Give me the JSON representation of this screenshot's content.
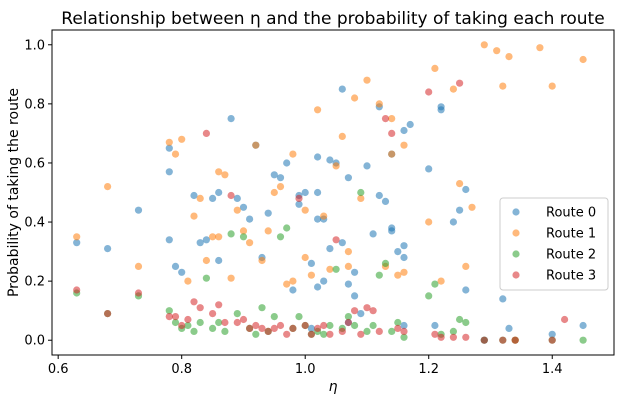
{
  "chart_data": {
    "type": "scatter",
    "title": "Relationship between η and the probability of taking each route",
    "xlabel": "η",
    "ylabel": "Probability of taking the route",
    "xlim": [
      0.59,
      1.5
    ],
    "ylim": [
      -0.05,
      1.05
    ],
    "xticks": [
      0.6,
      0.8,
      1.0,
      1.2,
      1.4
    ],
    "xtick_labels": [
      "0.6",
      "0.8",
      "1.0",
      "1.2",
      "1.4"
    ],
    "yticks": [
      0.0,
      0.2,
      0.4,
      0.6,
      0.8,
      1.0
    ],
    "ytick_labels": [
      "0.0",
      "0.2",
      "0.4",
      "0.6",
      "0.8",
      "1.0"
    ],
    "grid": false,
    "legend_position": "center-right",
    "series": [
      {
        "name": "Route 0",
        "color": "#1f77b4",
        "points": [
          [
            0.63,
            0.33
          ],
          [
            0.68,
            0.31
          ],
          [
            0.73,
            0.44
          ],
          [
            0.78,
            0.65
          ],
          [
            0.78,
            0.57
          ],
          [
            0.78,
            0.34
          ],
          [
            0.79,
            0.25
          ],
          [
            0.8,
            0.23
          ],
          [
            0.82,
            0.49
          ],
          [
            0.83,
            0.33
          ],
          [
            0.84,
            0.34
          ],
          [
            0.85,
            0.48
          ],
          [
            0.86,
            0.5
          ],
          [
            0.86,
            0.27
          ],
          [
            0.88,
            0.75
          ],
          [
            0.89,
            0.48
          ],
          [
            0.9,
            0.45
          ],
          [
            0.91,
            0.41
          ],
          [
            0.92,
            0.66
          ],
          [
            0.93,
            0.28
          ],
          [
            0.94,
            0.43
          ],
          [
            0.95,
            0.56
          ],
          [
            0.96,
            0.55
          ],
          [
            0.97,
            0.6
          ],
          [
            0.98,
            0.17
          ],
          [
            0.99,
            0.46
          ],
          [
            0.99,
            0.49
          ],
          [
            1.0,
            0.5
          ],
          [
            1.01,
            0.26
          ],
          [
            1.01,
            0.04
          ],
          [
            1.02,
            0.62
          ],
          [
            1.02,
            0.5
          ],
          [
            1.02,
            0.41
          ],
          [
            1.02,
            0.18
          ],
          [
            1.03,
            0.41
          ],
          [
            1.03,
            0.2
          ],
          [
            1.04,
            0.61
          ],
          [
            1.04,
            0.31
          ],
          [
            1.05,
            0.6
          ],
          [
            1.06,
            0.85
          ],
          [
            1.06,
            0.33
          ],
          [
            1.07,
            0.55
          ],
          [
            1.07,
            0.19
          ],
          [
            1.07,
            0.06
          ],
          [
            1.08,
            0.23
          ],
          [
            1.08,
            0.15
          ],
          [
            1.09,
            0.09
          ],
          [
            1.1,
            0.59
          ],
          [
            1.11,
            0.36
          ],
          [
            1.12,
            0.79
          ],
          [
            1.12,
            0.49
          ],
          [
            1.13,
            0.47
          ],
          [
            1.14,
            0.63
          ],
          [
            1.14,
            0.38
          ],
          [
            1.14,
            0.37
          ],
          [
            1.15,
            0.3
          ],
          [
            1.16,
            0.71
          ],
          [
            1.16,
            0.28
          ],
          [
            1.16,
            0.32
          ],
          [
            1.16,
            0.05
          ],
          [
            1.17,
            0.73
          ],
          [
            1.2,
            0.58
          ],
          [
            1.21,
            0.05
          ],
          [
            1.22,
            0.79
          ],
          [
            1.22,
            0.78
          ],
          [
            1.24,
            0.4
          ],
          [
            1.25,
            0.44
          ],
          [
            1.26,
            0.17
          ],
          [
            1.26,
            0.51
          ],
          [
            1.29,
            0.0
          ],
          [
            1.32,
            0.14
          ],
          [
            1.33,
            0.04
          ],
          [
            1.4,
            0.02
          ],
          [
            1.45,
            0.05
          ]
        ]
      },
      {
        "name": "Route 1",
        "color": "#ff7f0e",
        "points": [
          [
            0.63,
            0.35
          ],
          [
            0.68,
            0.52
          ],
          [
            0.73,
            0.25
          ],
          [
            0.78,
            0.67
          ],
          [
            0.79,
            0.63
          ],
          [
            0.8,
            0.68
          ],
          [
            0.81,
            0.2
          ],
          [
            0.82,
            0.42
          ],
          [
            0.83,
            0.48
          ],
          [
            0.84,
            0.27
          ],
          [
            0.85,
            0.35
          ],
          [
            0.86,
            0.57
          ],
          [
            0.86,
            0.35
          ],
          [
            0.87,
            0.56
          ],
          [
            0.88,
            0.21
          ],
          [
            0.89,
            0.44
          ],
          [
            0.9,
            0.37
          ],
          [
            0.91,
            0.33
          ],
          [
            0.92,
            0.66
          ],
          [
            0.93,
            0.27
          ],
          [
            0.94,
            0.37
          ],
          [
            0.95,
            0.5
          ],
          [
            0.96,
            0.52
          ],
          [
            0.97,
            0.19
          ],
          [
            0.98,
            0.63
          ],
          [
            0.98,
            0.2
          ],
          [
            1.0,
            0.44
          ],
          [
            1.0,
            0.28
          ],
          [
            1.01,
            0.22
          ],
          [
            1.02,
            0.78
          ],
          [
            1.03,
            0.42
          ],
          [
            1.04,
            0.24
          ],
          [
            1.05,
            0.59
          ],
          [
            1.06,
            0.69
          ],
          [
            1.07,
            0.3
          ],
          [
            1.07,
            0.25
          ],
          [
            1.08,
            0.82
          ],
          [
            1.09,
            0.48
          ],
          [
            1.1,
            0.88
          ],
          [
            1.12,
            0.8
          ],
          [
            1.13,
            0.25
          ],
          [
            1.14,
            0.75
          ],
          [
            1.14,
            0.63
          ],
          [
            1.15,
            0.22
          ],
          [
            1.16,
            0.66
          ],
          [
            1.16,
            0.23
          ],
          [
            1.2,
            0.4
          ],
          [
            1.21,
            0.92
          ],
          [
            1.22,
            0.2
          ],
          [
            1.24,
            0.85
          ],
          [
            1.25,
            0.53
          ],
          [
            1.26,
            0.25
          ],
          [
            1.27,
            0.45
          ],
          [
            1.29,
            1.0
          ],
          [
            1.31,
            0.98
          ],
          [
            1.32,
            0.86
          ],
          [
            1.33,
            0.96
          ],
          [
            1.34,
            0.0
          ],
          [
            1.38,
            0.99
          ],
          [
            1.4,
            0.86
          ],
          [
            1.45,
            0.95
          ]
        ]
      },
      {
        "name": "Route 2",
        "color": "#2ca02c",
        "points": [
          [
            0.63,
            0.16
          ],
          [
            0.68,
            0.09
          ],
          [
            0.73,
            0.15
          ],
          [
            0.78,
            0.1
          ],
          [
            0.79,
            0.06
          ],
          [
            0.8,
            0.04
          ],
          [
            0.81,
            0.05
          ],
          [
            0.82,
            0.03
          ],
          [
            0.83,
            0.06
          ],
          [
            0.84,
            0.21
          ],
          [
            0.85,
            0.04
          ],
          [
            0.86,
            0.06
          ],
          [
            0.87,
            0.03
          ],
          [
            0.88,
            0.36
          ],
          [
            0.89,
            0.09
          ],
          [
            0.9,
            0.35
          ],
          [
            0.91,
            0.04
          ],
          [
            0.92,
            0.02
          ],
          [
            0.93,
            0.11
          ],
          [
            0.94,
            0.03
          ],
          [
            0.95,
            0.08
          ],
          [
            0.96,
            0.35
          ],
          [
            0.97,
            0.38
          ],
          [
            0.98,
            0.04
          ],
          [
            0.99,
            0.08
          ],
          [
            1.0,
            0.05
          ],
          [
            1.01,
            0.02
          ],
          [
            1.02,
            0.03
          ],
          [
            1.03,
            0.02
          ],
          [
            1.04,
            0.05
          ],
          [
            1.05,
            0.24
          ],
          [
            1.06,
            0.04
          ],
          [
            1.07,
            0.08
          ],
          [
            1.08,
            0.05
          ],
          [
            1.09,
            0.5
          ],
          [
            1.1,
            0.03
          ],
          [
            1.11,
            0.05
          ],
          [
            1.12,
            0.22
          ],
          [
            1.13,
            0.26
          ],
          [
            1.14,
            0.03
          ],
          [
            1.15,
            0.06
          ],
          [
            1.16,
            0.01
          ],
          [
            1.2,
            0.15
          ],
          [
            1.21,
            0.19
          ],
          [
            1.22,
            0.02
          ],
          [
            1.24,
            0.03
          ],
          [
            1.25,
            0.07
          ],
          [
            1.26,
            0.06
          ],
          [
            1.29,
            0.0
          ],
          [
            1.32,
            0.0
          ],
          [
            1.34,
            0.0
          ],
          [
            1.4,
            0.0
          ],
          [
            1.45,
            0.0
          ]
        ]
      },
      {
        "name": "Route 3",
        "color": "#d62728",
        "points": [
          [
            0.63,
            0.17
          ],
          [
            0.68,
            0.09
          ],
          [
            0.73,
            0.16
          ],
          [
            0.78,
            0.08
          ],
          [
            0.79,
            0.08
          ],
          [
            0.8,
            0.05
          ],
          [
            0.81,
            0.07
          ],
          [
            0.82,
            0.13
          ],
          [
            0.83,
            0.11
          ],
          [
            0.84,
            0.7
          ],
          [
            0.85,
            0.09
          ],
          [
            0.86,
            0.12
          ],
          [
            0.87,
            0.06
          ],
          [
            0.88,
            0.49
          ],
          [
            0.89,
            0.06
          ],
          [
            0.9,
            0.07
          ],
          [
            0.91,
            0.04
          ],
          [
            0.92,
            0.05
          ],
          [
            0.93,
            0.04
          ],
          [
            0.94,
            0.03
          ],
          [
            0.95,
            0.04
          ],
          [
            0.96,
            0.05
          ],
          [
            0.97,
            0.02
          ],
          [
            0.98,
            0.04
          ],
          [
            0.99,
            0.48
          ],
          [
            1.0,
            0.05
          ],
          [
            1.01,
            0.02
          ],
          [
            1.02,
            0.04
          ],
          [
            1.03,
            0.05
          ],
          [
            1.04,
            0.02
          ],
          [
            1.05,
            0.34
          ],
          [
            1.06,
            0.03
          ],
          [
            1.07,
            0.06
          ],
          [
            1.08,
            0.1
          ],
          [
            1.09,
            0.02
          ],
          [
            1.1,
            0.11
          ],
          [
            1.11,
            0.1
          ],
          [
            1.12,
            0.03
          ],
          [
            1.13,
            0.75
          ],
          [
            1.14,
            0.7
          ],
          [
            1.15,
            0.04
          ],
          [
            1.16,
            0.03
          ],
          [
            1.2,
            0.84
          ],
          [
            1.21,
            0.02
          ],
          [
            1.22,
            0.01
          ],
          [
            1.24,
            0.01
          ],
          [
            1.25,
            0.87
          ],
          [
            1.26,
            0.01
          ],
          [
            1.29,
            0.0
          ],
          [
            1.32,
            0.0
          ],
          [
            1.34,
            0.0
          ],
          [
            1.4,
            0.0
          ],
          [
            1.42,
            0.07
          ]
        ]
      }
    ]
  }
}
